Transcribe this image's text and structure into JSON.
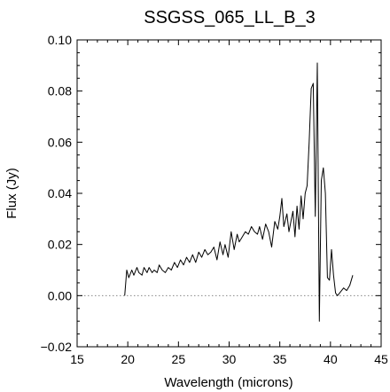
{
  "chart_data": {
    "type": "line",
    "title": "SSGSS_065_LL_B_3",
    "xlabel": "Wavelength (microns)",
    "ylabel": "Flux (Jy)",
    "xlim": [
      15,
      45
    ],
    "ylim": [
      -0.02,
      0.1
    ],
    "xticks": [
      15,
      20,
      25,
      30,
      35,
      40,
      45
    ],
    "yticks": [
      -0.02,
      0.0,
      0.02,
      0.04,
      0.06,
      0.08,
      0.1
    ],
    "xtick_labels": [
      "15",
      "20",
      "25",
      "30",
      "35",
      "40",
      "45"
    ],
    "ytick_labels": [
      "−0.02",
      "0.00",
      "0.02",
      "0.04",
      "0.06",
      "0.08",
      "0.10"
    ],
    "zero_line": {
      "y": 0,
      "style": "dotted",
      "color": "#888888"
    },
    "series": [
      {
        "color": "#000000",
        "x": [
          19.7,
          19.9,
          20.1,
          20.4,
          20.6,
          20.9,
          21.1,
          21.4,
          21.6,
          21.9,
          22.1,
          22.4,
          22.6,
          22.9,
          23.1,
          23.4,
          23.7,
          24.0,
          24.3,
          24.6,
          24.9,
          25.2,
          25.5,
          25.8,
          26.1,
          26.4,
          26.7,
          27.0,
          27.3,
          27.6,
          27.9,
          28.2,
          28.5,
          28.8,
          29.1,
          29.4,
          29.6,
          29.9,
          30.2,
          30.5,
          30.8,
          31.0,
          31.3,
          31.6,
          31.9,
          32.2,
          32.5,
          32.8,
          33.0,
          33.3,
          33.6,
          33.9,
          34.2,
          34.5,
          34.8,
          35.0,
          35.2,
          35.4,
          35.7,
          35.9,
          36.1,
          36.3,
          36.5,
          36.7,
          36.9,
          37.1,
          37.3,
          37.5,
          37.7,
          37.9,
          38.1,
          38.3,
          38.5,
          38.7,
          38.9,
          39.1,
          39.3,
          39.5,
          39.7,
          39.9,
          40.1,
          40.3,
          40.5,
          40.7,
          40.9,
          41.1,
          41.3,
          41.6,
          41.9,
          42.2
        ],
        "values": [
          0.0,
          0.01,
          0.007,
          0.01,
          0.008,
          0.011,
          0.009,
          0.008,
          0.011,
          0.009,
          0.011,
          0.009,
          0.01,
          0.009,
          0.012,
          0.01,
          0.009,
          0.011,
          0.01,
          0.013,
          0.011,
          0.014,
          0.012,
          0.015,
          0.013,
          0.016,
          0.013,
          0.017,
          0.015,
          0.018,
          0.016,
          0.017,
          0.019,
          0.014,
          0.021,
          0.016,
          0.02,
          0.015,
          0.025,
          0.018,
          0.024,
          0.021,
          0.023,
          0.025,
          0.024,
          0.027,
          0.025,
          0.024,
          0.027,
          0.022,
          0.028,
          0.025,
          0.019,
          0.029,
          0.026,
          0.031,
          0.038,
          0.027,
          0.032,
          0.025,
          0.029,
          0.033,
          0.023,
          0.035,
          0.026,
          0.039,
          0.03,
          0.04,
          0.043,
          0.06,
          0.081,
          0.083,
          0.031,
          0.091,
          -0.01,
          0.045,
          0.05,
          0.04,
          0.007,
          0.006,
          0.018,
          0.008,
          0.001,
          0.0,
          0.001,
          0.002,
          0.003,
          0.002,
          0.004,
          0.008
        ]
      }
    ]
  }
}
